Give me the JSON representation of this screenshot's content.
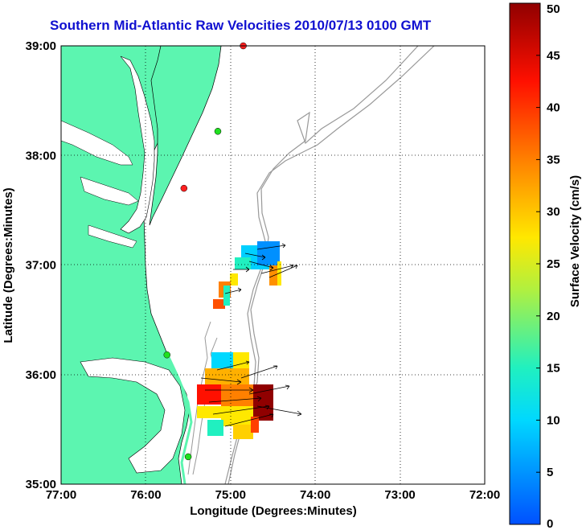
{
  "title": "Southern Mid-Atlantic Raw Velocities 2010/07/13 0100 GMT",
  "xlabel": "Longitude (Degrees:Minutes)",
  "ylabel": "Latitude (Degrees:Minutes)",
  "x_ticks": [
    "77:00",
    "76:00",
    "75:00",
    "74:00",
    "73:00",
    "72:00"
  ],
  "y_ticks": [
    "39:00",
    "38:00",
    "37:00",
    "36:00",
    "35:00"
  ],
  "colorbar": {
    "label": "Surface Velocity (cm/s)",
    "ticks": [
      "0",
      "5",
      "10",
      "15",
      "20",
      "25",
      "30",
      "35",
      "40",
      "45",
      "50"
    ],
    "range": [
      0,
      50
    ]
  },
  "colors": {
    "land": "#5cf5b0",
    "title": "#1010d0",
    "grid": "#000000",
    "bathymetry": "#999999"
  },
  "chart_data": {
    "type": "map",
    "lon_range": [
      -77,
      -72
    ],
    "lat_range": [
      35,
      39
    ],
    "grid": true,
    "sites": [
      {
        "lon": -74.85,
        "lat": 39.0,
        "color": "#ff2020"
      },
      {
        "lon": -75.15,
        "lat": 38.22,
        "color": "#20e020"
      },
      {
        "lon": -75.55,
        "lat": 37.7,
        "color": "#ff2020"
      },
      {
        "lon": -75.75,
        "lat": 36.18,
        "color": "#20e020"
      },
      {
        "lon": -75.5,
        "lat": 35.25,
        "color": "#20e020"
      }
    ]
  }
}
